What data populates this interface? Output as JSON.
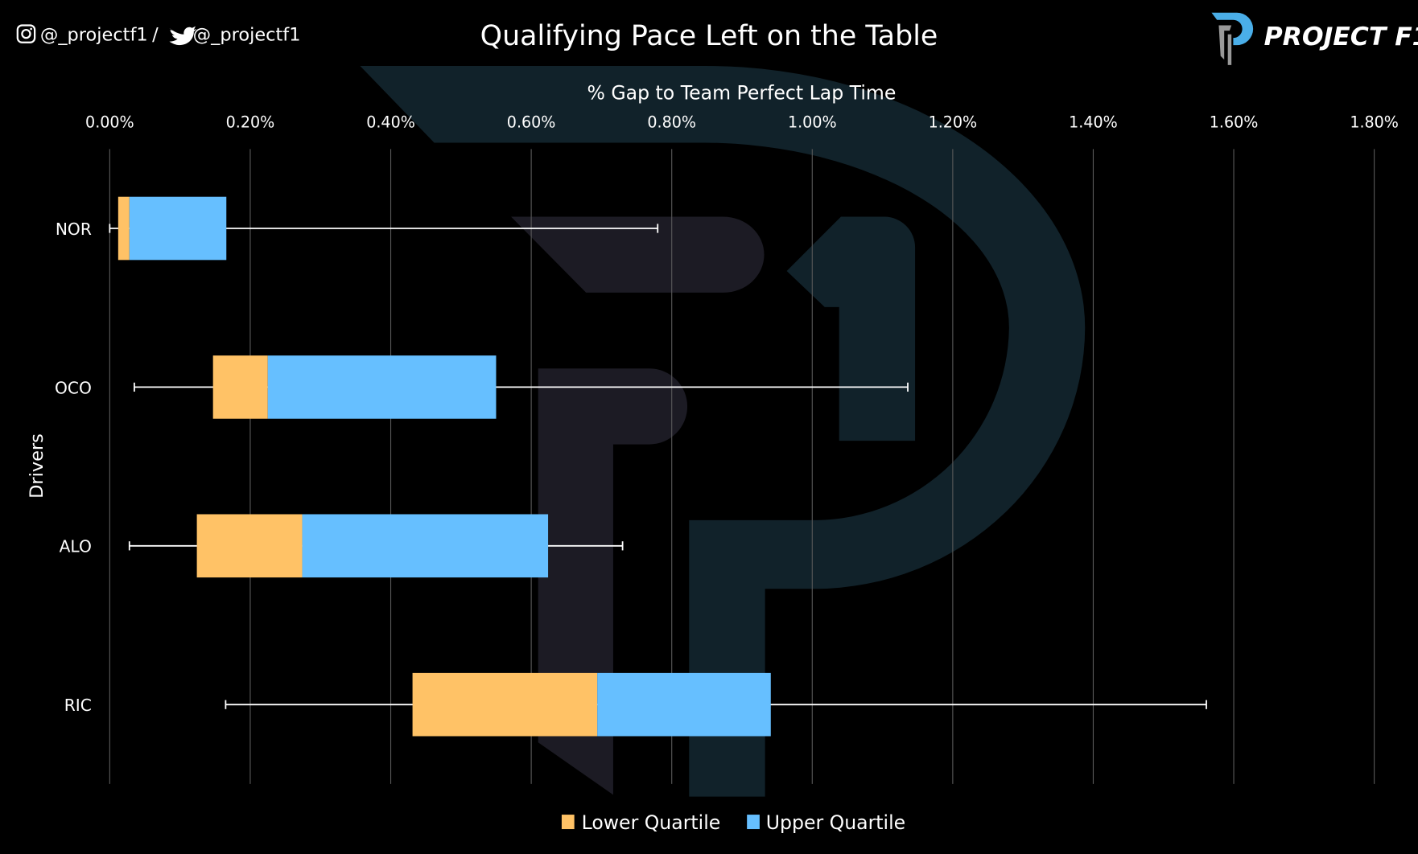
{
  "header": {
    "social_handle_instagram": "@_projectf1",
    "separator": "/",
    "social_handle_twitter": "@_projectf1",
    "logo_text": "PROJECT F1"
  },
  "colors": {
    "background": "#000000",
    "lower_quartile": "#FFC266",
    "upper_quartile": "#66BFFF",
    "whisker": "#FFFFFF",
    "gridline": "#595959",
    "logo_accent": "#4AAEE8"
  },
  "chart_data": {
    "type": "boxplot",
    "title": "Qualifying Pace Left on the Table",
    "xlabel": "% Gap to Team Perfect Lap Time",
    "ylabel": "Drivers",
    "xlim": [
      0,
      1.8
    ],
    "x_axis_position": "top",
    "x_ticks": [
      "0.00%",
      "0.20%",
      "0.40%",
      "0.60%",
      "0.80%",
      "1.00%",
      "1.20%",
      "1.40%",
      "1.60%",
      "1.80%"
    ],
    "x_tick_values": [
      0,
      0.2,
      0.4,
      0.6,
      0.8,
      1.0,
      1.2,
      1.4,
      1.6,
      1.8
    ],
    "grid": true,
    "legend_placement": "bottom",
    "series": [
      {
        "name": "Lower Quartile",
        "color": "#FFC266"
      },
      {
        "name": "Upper Quartile",
        "color": "#66BFFF"
      }
    ],
    "categories": [
      "NOR",
      "OCO",
      "ALO",
      "RIC"
    ],
    "boxes": [
      {
        "driver": "NOR",
        "min": 0.0,
        "q1": 0.012,
        "median": 0.028,
        "q3": 0.166,
        "max": 0.78
      },
      {
        "driver": "OCO",
        "min": 0.035,
        "q1": 0.147,
        "median": 0.225,
        "q3": 0.55,
        "max": 1.136
      },
      {
        "driver": "ALO",
        "min": 0.028,
        "q1": 0.124,
        "median": 0.274,
        "q3": 0.624,
        "max": 0.73
      },
      {
        "driver": "RIC",
        "min": 0.165,
        "q1": 0.431,
        "median": 0.694,
        "q3": 0.941,
        "max": 1.561
      }
    ]
  }
}
